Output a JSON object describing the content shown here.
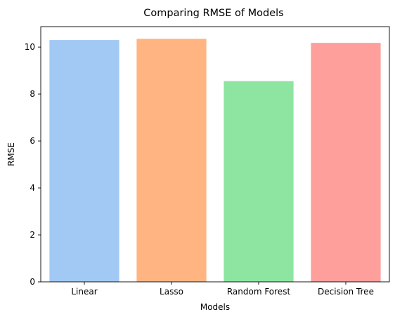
{
  "chart_data": {
    "type": "bar",
    "title": "Comparing RMSE of Models",
    "xlabel": "Models",
    "ylabel": "RMSE",
    "categories": [
      "Linear",
      "Lasso",
      "Random Forest",
      "Decision Tree"
    ],
    "values": [
      10.3,
      10.35,
      8.55,
      10.18
    ],
    "colors": [
      "#a1c9f4",
      "#ffb482",
      "#8de5a1",
      "#ff9f9b"
    ],
    "ylim": [
      0,
      10.87
    ],
    "yticks": [
      0,
      2,
      4,
      6,
      8,
      10
    ],
    "grid": false,
    "legend": "none"
  }
}
